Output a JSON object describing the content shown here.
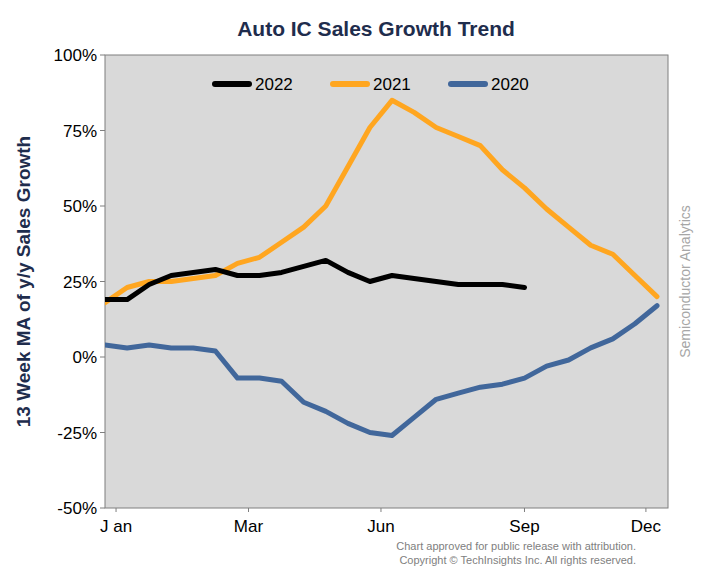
{
  "chart_data": {
    "type": "line",
    "title": "Auto IC Sales Growth Trend",
    "y_label": "13 Week MA of y/y Sales Growth",
    "watermark": "Semiconductor Analytics",
    "source": [
      "Chart approved  for public release with attribution.",
      "Copyright © TechInsights Inc.  All rights reserved."
    ],
    "x": [
      1,
      3,
      5,
      7,
      9,
      11,
      13,
      15,
      17,
      19,
      21,
      23,
      25,
      27,
      29,
      31,
      33,
      35,
      37,
      39,
      41,
      43,
      45,
      47,
      49,
      51
    ],
    "xlim": [
      1,
      52
    ],
    "xticks": [
      {
        "value": 2,
        "label": "J an"
      },
      {
        "value": 14,
        "label": "Mar"
      },
      {
        "value": 26,
        "label": "Jun"
      },
      {
        "value": 39,
        "label": "Sep"
      },
      {
        "value": 50,
        "label": "Dec"
      }
    ],
    "ylim": [
      -50,
      100
    ],
    "yticks": [
      {
        "value": -50,
        "label": "-50%"
      },
      {
        "value": -25,
        "label": "-25%"
      },
      {
        "value": 0,
        "label": "0%"
      },
      {
        "value": 25,
        "label": "25%"
      },
      {
        "value": 50,
        "label": "50%"
      },
      {
        "value": 75,
        "label": "75%"
      },
      {
        "value": 100,
        "label": "100%"
      }
    ],
    "grid": false,
    "legend": "top",
    "series": [
      {
        "name": "2022",
        "color": "#000000",
        "values": [
          19,
          19,
          24,
          27,
          28,
          29,
          27,
          27,
          28,
          30,
          32,
          28,
          25,
          27,
          26,
          25,
          24,
          24,
          24,
          23,
          null,
          null,
          null,
          null,
          null,
          null
        ]
      },
      {
        "name": "2021",
        "color": "#ffa620",
        "values": [
          18,
          23,
          25,
          25,
          26,
          27,
          31,
          33,
          38,
          43,
          50,
          63,
          76,
          85,
          81,
          76,
          73,
          70,
          62,
          56,
          49,
          43,
          37,
          34,
          27,
          20
        ]
      },
      {
        "name": "2020",
        "color": "#41679b",
        "values": [
          4,
          3,
          4,
          3,
          3,
          2,
          -7,
          -7,
          -8,
          -15,
          -18,
          -22,
          -25,
          -26,
          -20,
          -14,
          -12,
          -10,
          -9,
          -7,
          -3,
          -1,
          3,
          6,
          11,
          17
        ]
      }
    ]
  }
}
